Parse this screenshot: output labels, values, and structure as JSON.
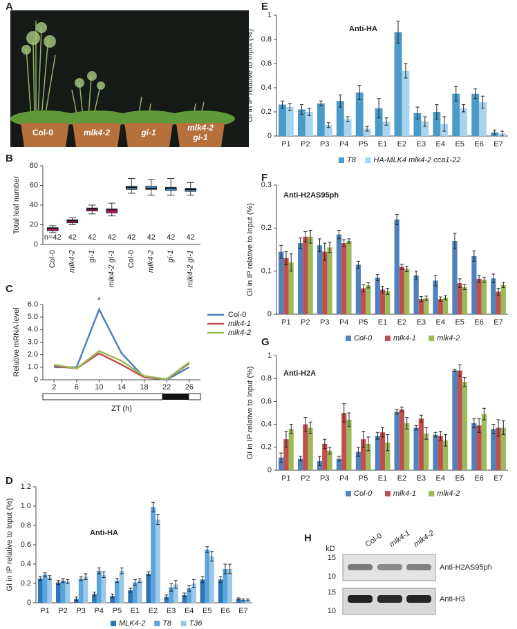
{
  "panel_a": {
    "panel": "A",
    "labels": [
      "Col-0",
      "mlk4-2",
      "gi-1",
      "mlk4-2",
      "gi-1"
    ]
  },
  "panel_h": {
    "panel": "H",
    "unit": "kD",
    "lanes": [
      "Col-0",
      "mlk4-1",
      "mlk4-2"
    ],
    "blots": [
      "Anti-H2AS95ph",
      "Anti-H3"
    ],
    "markers": [
      "15",
      "10",
      "15",
      "10"
    ]
  },
  "chart_data": [
    {
      "type": "box",
      "panel": "B",
      "ylabel": "Total leaf number",
      "categories": [
        "Col-0",
        "mlk4-2",
        "gi-1",
        "mlk4-2 gi-1",
        "Col-0",
        "mlk4-2",
        "gi-1",
        "mlk4-2 gi-1"
      ],
      "n_labels": [
        "n=42",
        "42",
        "42",
        "42",
        "42",
        "42",
        "42",
        "42"
      ],
      "colors": [
        "#c2186b",
        "#c2186b",
        "#c2186b",
        "#c2186b",
        "#3a8fd0",
        "#3a8fd0",
        "#3a8fd0",
        "#3a8fd0"
      ],
      "whisker_low": [
        12,
        20,
        31,
        29,
        52,
        50,
        50,
        50
      ],
      "q1": [
        14,
        22,
        34,
        32,
        56,
        56,
        55,
        54
      ],
      "median": [
        16,
        24,
        36,
        35,
        58,
        57,
        57,
        56
      ],
      "q3": [
        17,
        25,
        37,
        36,
        59,
        59,
        58,
        57
      ],
      "whisker_high": [
        19,
        27,
        40,
        42,
        67,
        66,
        67,
        63
      ],
      "ylim": [
        0,
        80
      ],
      "yticks": [
        0,
        20,
        40,
        60,
        80
      ]
    },
    {
      "type": "line",
      "panel": "C",
      "ylabel": "Relative mRNA level",
      "xlabel": "ZT (h)",
      "annotation": "*",
      "x": [
        2,
        6,
        10,
        14,
        18,
        22,
        26
      ],
      "xlim": [
        0,
        28
      ],
      "xticks": [
        2,
        6,
        10,
        14,
        18,
        22,
        26
      ],
      "ylim": [
        0,
        6
      ],
      "yticks": [
        0,
        {
          "value": 1,
          "label": "1.0"
        },
        {
          "value": 2,
          "label": "2.0"
        },
        {
          "value": 3,
          "label": "3.0"
        },
        {
          "value": 4,
          "label": "4.0"
        },
        {
          "value": 5,
          "label": "5.0"
        },
        {
          "value": 6,
          "label": "6.0"
        }
      ],
      "series": [
        {
          "name": "Col-0",
          "color": "#4f81bd",
          "values": [
            1.0,
            1.0,
            5.6,
            2.1,
            0.2,
            0.0,
            1.0
          ]
        },
        {
          "name": "mlk4-1",
          "color": "#c0504d",
          "values": [
            1.1,
            0.9,
            2.1,
            1.2,
            0.2,
            0.05,
            1.3
          ]
        },
        {
          "name": "mlk4-2",
          "color": "#9bbb59",
          "values": [
            1.2,
            0.9,
            2.3,
            1.5,
            0.3,
            0.05,
            1.4
          ]
        }
      ]
    },
    {
      "type": "bar",
      "panel": "D",
      "title": "Anti-HA",
      "ylabel": "GI in IP relative to Input (%)",
      "categories": [
        "P1",
        "P2",
        "P3",
        "P4",
        "P5",
        "E1",
        "E2",
        "E3",
        "E4",
        "E5",
        "E6",
        "E7"
      ],
      "ylim": [
        0,
        1.2
      ],
      "yticks": [
        0,
        0.2,
        0.4,
        0.6,
        0.8,
        {
          "value": 1,
          "label": "1.0"
        },
        1.2
      ],
      "series": [
        {
          "name": "MLK4-2",
          "color": "#2e75b6",
          "values": [
            0.25,
            0.21,
            0.04,
            0.09,
            0.07,
            0.13,
            0.3,
            0.06,
            0.08,
            0.24,
            0.24,
            0.04
          ],
          "errors": [
            0.02,
            0.02,
            0.02,
            0.02,
            0.02,
            0.02,
            0.02,
            0.02,
            0.02,
            0.03,
            0.03,
            0.01
          ]
        },
        {
          "name": "T8",
          "color": "#5aa5dc",
          "values": [
            0.29,
            0.23,
            0.25,
            0.33,
            0.23,
            0.21,
            0.99,
            0.16,
            0.15,
            0.55,
            0.35,
            0.03
          ],
          "errors": [
            0.02,
            0.02,
            0.02,
            0.03,
            0.02,
            0.03,
            0.05,
            0.04,
            0.03,
            0.03,
            0.05,
            0.01
          ]
        },
        {
          "name": "T36",
          "color": "#9cc9ea",
          "values": [
            0.26,
            0.22,
            0.27,
            0.29,
            0.33,
            0.23,
            0.86,
            0.19,
            0.2,
            0.48,
            0.35,
            0.03
          ],
          "errors": [
            0.02,
            0.02,
            0.03,
            0.03,
            0.03,
            0.02,
            0.05,
            0.04,
            0.04,
            0.05,
            0.05,
            0.01
          ]
        }
      ]
    },
    {
      "type": "bar",
      "panel": "E",
      "title": "Anti-HA",
      "ylabel": "GI in IP relative to Input (%)",
      "categories": [
        "P1",
        "P2",
        "P3",
        "P4",
        "P5",
        "E1",
        "E2",
        "E3",
        "E4",
        "E5",
        "E6",
        "E7"
      ],
      "ylim": [
        0,
        1
      ],
      "yticks": [
        0,
        0.2,
        0.4,
        0.6,
        0.8,
        1
      ],
      "series": [
        {
          "name": "T8",
          "color": "#4a9bc9",
          "values": [
            0.26,
            0.22,
            0.27,
            0.29,
            0.36,
            0.23,
            0.86,
            0.19,
            0.2,
            0.35,
            0.35,
            0.03
          ],
          "errors": [
            0.03,
            0.04,
            0.02,
            0.05,
            0.06,
            0.08,
            0.09,
            0.05,
            0.06,
            0.06,
            0.04,
            0.02
          ]
        },
        {
          "name": "HA-MLK4 mlk4-2 cca1-22",
          "color": "#a8d4ee",
          "values": [
            0.24,
            0.2,
            0.09,
            0.14,
            0.06,
            0.12,
            0.54,
            0.12,
            0.1,
            0.23,
            0.28,
            0.02
          ],
          "errors": [
            0.03,
            0.03,
            0.02,
            0.02,
            0.02,
            0.03,
            0.06,
            0.04,
            0.06,
            0.03,
            0.05,
            0.02
          ]
        }
      ]
    },
    {
      "type": "bar",
      "panel": "F",
      "title": "Anti-H2AS95ph",
      "ylabel": "GI in IP relative to Input (%)",
      "categories": [
        "P1",
        "P2",
        "P3",
        "P4",
        "P5",
        "E1",
        "E2",
        "E3",
        "E4",
        "E5",
        "E6",
        "E7"
      ],
      "ylim": [
        0,
        0.3
      ],
      "yticks": [
        0,
        0.1,
        0.2,
        0.3
      ],
      "series": [
        {
          "name": "Col-0",
          "color": "#4f81bd",
          "values": [
            0.145,
            0.165,
            0.16,
            0.185,
            0.115,
            0.085,
            0.22,
            0.09,
            0.078,
            0.17,
            0.135,
            0.083
          ],
          "errors": [
            0.015,
            0.012,
            0.015,
            0.01,
            0.008,
            0.007,
            0.012,
            0.01,
            0.012,
            0.018,
            0.012,
            0.01
          ]
        },
        {
          "name": "mlk4-1",
          "color": "#c0504d",
          "values": [
            0.13,
            0.18,
            0.145,
            0.165,
            0.06,
            0.057,
            0.11,
            0.035,
            0.035,
            0.072,
            0.082,
            0.052
          ],
          "errors": [
            0.015,
            0.012,
            0.02,
            0.008,
            0.008,
            0.008,
            0.006,
            0.006,
            0.005,
            0.01,
            0.008,
            0.008
          ]
        },
        {
          "name": "mlk4-2",
          "color": "#9bbb59",
          "values": [
            0.12,
            0.18,
            0.155,
            0.17,
            0.067,
            0.053,
            0.105,
            0.037,
            0.038,
            0.063,
            0.08,
            0.068
          ],
          "errors": [
            0.02,
            0.015,
            0.012,
            0.005,
            0.006,
            0.007,
            0.006,
            0.005,
            0.005,
            0.006,
            0.006,
            0.006
          ]
        }
      ]
    },
    {
      "type": "bar",
      "panel": "G",
      "title": "Anti-H2A",
      "ylabel": "GI in IP relative to Input (%)",
      "categories": [
        "P1",
        "P2",
        "P3",
        "P4",
        "P5",
        "E1",
        "E2",
        "E3",
        "E4",
        "E5",
        "E6",
        "E7"
      ],
      "ylim": [
        0,
        1
      ],
      "yticks": [
        0,
        0.2,
        0.4,
        0.6,
        0.8,
        1
      ],
      "series": [
        {
          "name": "Col-0",
          "color": "#4f81bd",
          "values": [
            0.11,
            0.1,
            0.08,
            0.1,
            0.16,
            0.3,
            0.51,
            0.37,
            0.31,
            0.87,
            0.41,
            0.36
          ],
          "errors": [
            0.04,
            0.02,
            0.04,
            0.02,
            0.04,
            0.03,
            0.02,
            0.02,
            0.02,
            0.01,
            0.04,
            0.04
          ]
        },
        {
          "name": "mlk4-1",
          "color": "#c0504d",
          "values": [
            0.27,
            0.4,
            0.23,
            0.5,
            0.27,
            0.33,
            0.53,
            0.45,
            0.3,
            0.87,
            0.39,
            0.37
          ],
          "errors": [
            0.07,
            0.06,
            0.04,
            0.08,
            0.07,
            0.04,
            0.02,
            0.03,
            0.04,
            0.05,
            0.06,
            0.07
          ]
        },
        {
          "name": "mlk4-2",
          "color": "#9bbb59",
          "values": [
            0.36,
            0.37,
            0.17,
            0.44,
            0.23,
            0.24,
            0.41,
            0.32,
            0.26,
            0.77,
            0.49,
            0.37
          ],
          "errors": [
            0.04,
            0.05,
            0.03,
            0.06,
            0.06,
            0.07,
            0.05,
            0.05,
            0.05,
            0.04,
            0.05,
            0.06
          ]
        }
      ]
    }
  ]
}
